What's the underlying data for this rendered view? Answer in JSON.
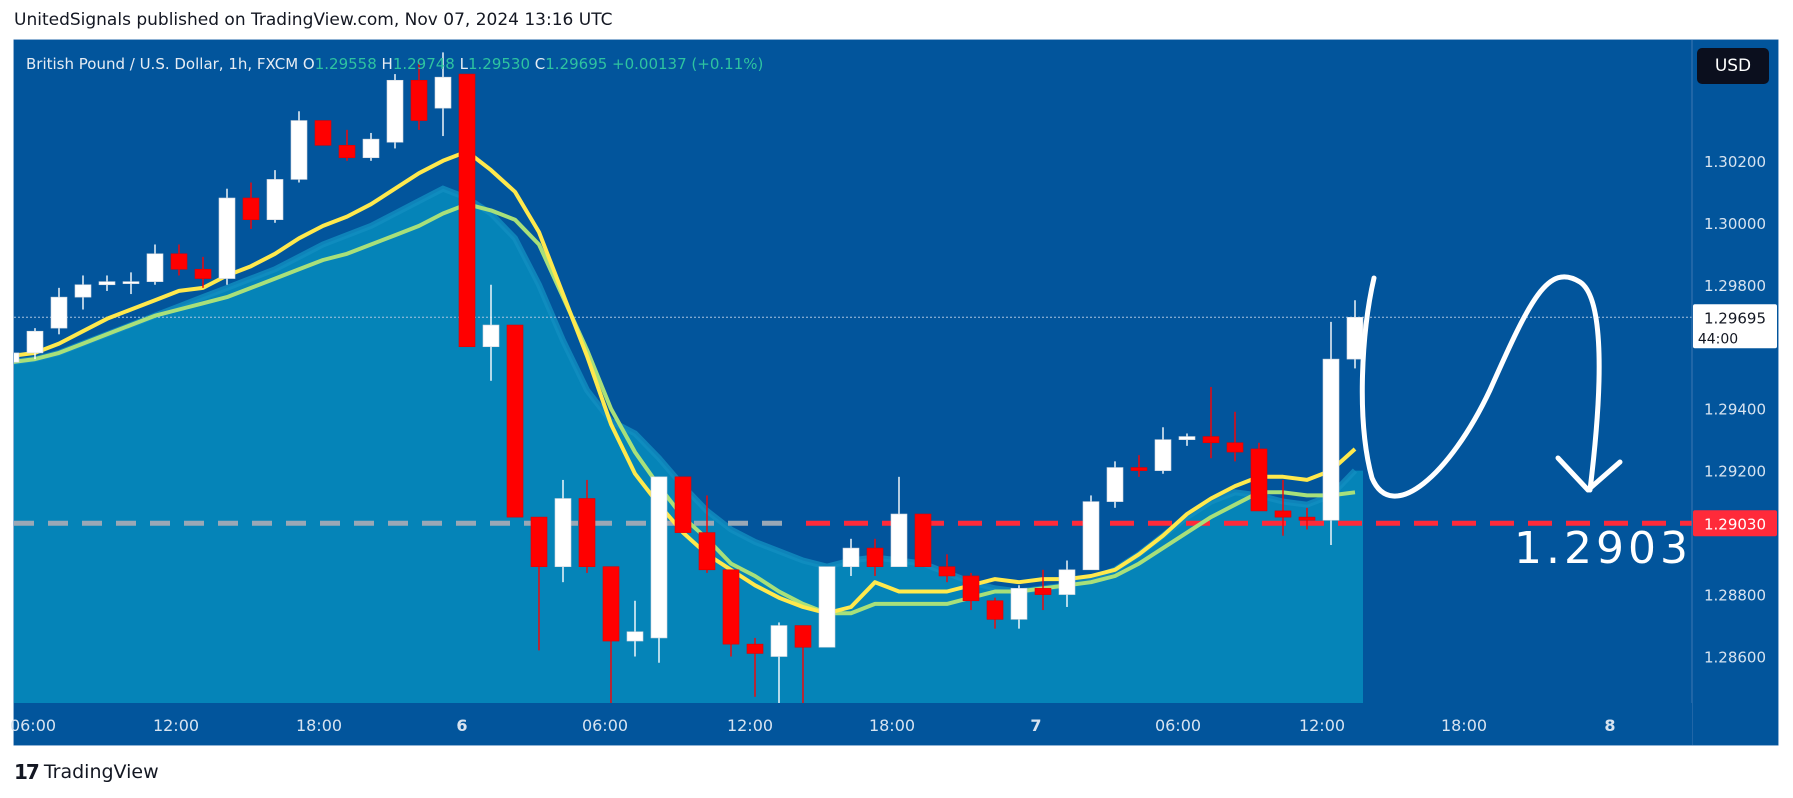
{
  "header": {
    "published": "UnitedSignals published on TradingView.com, Nov 07, 2024 13:16 UTC"
  },
  "footer": {
    "brand": "TradingView",
    "logo_text": "17"
  },
  "currency_button": "USD",
  "colors": {
    "background": "#02559c",
    "area": "#0584b8",
    "area_edge": "#128fc0",
    "up_candle": "#ffffff",
    "down_candle": "#ff0000",
    "fast_ma": "#ffe94d",
    "slow_ma": "#a8e07a",
    "level_line": "#ff2a3a",
    "level_line_left": "#9aa8b6"
  },
  "chart_data": {
    "type": "candlestick",
    "legend": {
      "symbol": "British Pound / U.S. Dollar, 1h, FXCM",
      "open_label": "O",
      "open": "1.29558",
      "high_label": "H",
      "high": "1.29748",
      "low_label": "L",
      "low": "1.29530",
      "close_label": "C",
      "close": "1.29695",
      "change": "+0.00137 (+0.11%)"
    },
    "ylim": [
      1.2845,
      1.3059
    ],
    "y_ticks": [
      "1.30200",
      "1.30000",
      "1.29800",
      "1.29400",
      "1.29200",
      "1.28800",
      "1.28600"
    ],
    "x_ticks": [
      "06:00",
      "12:00",
      "18:00",
      "6",
      "06:00",
      "12:00",
      "18:00",
      "7",
      "06:00",
      "12:00",
      "18:00",
      "8"
    ],
    "current_price": {
      "value": 1.29695,
      "label": "1.29695",
      "countdown": "44:00"
    },
    "level": {
      "value": 1.2903,
      "label": "1.29030",
      "annotation": "1.2903"
    },
    "candles": [
      [
        1.2955,
        1.296,
        1.2952,
        1.2958
      ],
      [
        1.2958,
        1.2966,
        1.2956,
        1.2965
      ],
      [
        1.2966,
        1.2979,
        1.2964,
        1.2976
      ],
      [
        1.2976,
        1.2983,
        1.2972,
        1.298
      ],
      [
        1.298,
        1.2983,
        1.2978,
        1.2981
      ],
      [
        1.2981,
        1.2984,
        1.2977,
        1.2981
      ],
      [
        1.2981,
        1.2993,
        1.298,
        1.299
      ],
      [
        1.299,
        1.2993,
        1.2983,
        1.2985
      ],
      [
        1.2985,
        1.2989,
        1.2979,
        1.2982
      ],
      [
        1.2982,
        1.3011,
        1.298,
        1.3008
      ],
      [
        1.3008,
        1.3013,
        1.2998,
        1.3001
      ],
      [
        1.3001,
        1.3017,
        1.3,
        1.3014
      ],
      [
        1.3014,
        1.3036,
        1.3013,
        1.3033
      ],
      [
        1.3033,
        1.3033,
        1.3025,
        1.3025
      ],
      [
        1.3025,
        1.303,
        1.302,
        1.3021
      ],
      [
        1.3021,
        1.3029,
        1.302,
        1.3027
      ],
      [
        1.3026,
        1.3048,
        1.3024,
        1.3046
      ],
      [
        1.3046,
        1.3052,
        1.303,
        1.3033
      ],
      [
        1.3037,
        1.3055,
        1.3028,
        1.3047
      ],
      [
        1.3048,
        1.3048,
        1.296,
        1.296
      ],
      [
        1.296,
        1.298,
        1.2949,
        1.2967
      ],
      [
        1.2967,
        1.2967,
        1.2905,
        1.2905
      ],
      [
        1.2905,
        1.2905,
        1.2862,
        1.2889
      ],
      [
        1.2889,
        1.2917,
        1.2884,
        1.2911
      ],
      [
        1.2911,
        1.2917,
        1.2887,
        1.2889
      ],
      [
        1.2889,
        1.2889,
        1.2845,
        1.2865
      ],
      [
        1.2865,
        1.2878,
        1.286,
        1.2868
      ],
      [
        1.2866,
        1.2918,
        1.2858,
        1.2918
      ],
      [
        1.2918,
        1.2918,
        1.29,
        1.29
      ],
      [
        1.29,
        1.2912,
        1.2887,
        1.2888
      ],
      [
        1.2888,
        1.2888,
        1.286,
        1.2864
      ],
      [
        1.2864,
        1.2866,
        1.2847,
        1.2861
      ],
      [
        1.286,
        1.2871,
        1.2843,
        1.287
      ],
      [
        1.287,
        1.287,
        1.2843,
        1.2863
      ],
      [
        1.2863,
        1.2889,
        1.2863,
        1.2889
      ],
      [
        1.2889,
        1.2898,
        1.2886,
        1.2895
      ],
      [
        1.2895,
        1.2898,
        1.2886,
        1.2889
      ],
      [
        1.2889,
        1.2918,
        1.2889,
        1.2906
      ],
      [
        1.2906,
        1.2906,
        1.2889,
        1.2889
      ],
      [
        1.2889,
        1.2893,
        1.2884,
        1.2886
      ],
      [
        1.2886,
        1.2887,
        1.2875,
        1.2878
      ],
      [
        1.2878,
        1.2879,
        1.2869,
        1.2872
      ],
      [
        1.2872,
        1.2883,
        1.2869,
        1.2882
      ],
      [
        1.2882,
        1.2888,
        1.2875,
        1.288
      ],
      [
        1.288,
        1.2891,
        1.2876,
        1.2888
      ],
      [
        1.2888,
        1.2912,
        1.2888,
        1.291
      ],
      [
        1.291,
        1.2923,
        1.2908,
        1.2921
      ],
      [
        1.2921,
        1.2925,
        1.2918,
        1.292
      ],
      [
        1.292,
        1.2934,
        1.2919,
        1.293
      ],
      [
        1.293,
        1.2932,
        1.2928,
        1.2931
      ],
      [
        1.2931,
        1.2947,
        1.2924,
        1.2929
      ],
      [
        1.2929,
        1.2939,
        1.2923,
        1.2926
      ],
      [
        1.2927,
        1.2929,
        1.2907,
        1.2907
      ],
      [
        1.2907,
        1.2917,
        1.2899,
        1.2905
      ],
      [
        1.2905,
        1.2908,
        1.2901,
        1.2904
      ],
      [
        1.2904,
        1.2968,
        1.2896,
        1.2956
      ],
      [
        1.2956,
        1.2975,
        1.2953,
        1.29695
      ]
    ],
    "series": [
      {
        "name": "EMA fast",
        "values": [
          1.2957,
          1.2958,
          1.2961,
          1.2965,
          1.2969,
          1.2972,
          1.2975,
          1.2978,
          1.2979,
          1.2983,
          1.2986,
          1.299,
          1.2995,
          1.2999,
          1.3002,
          1.3006,
          1.3011,
          1.3016,
          1.302,
          1.3023,
          1.3017,
          1.301,
          1.2997,
          1.2977,
          1.2957,
          1.2935,
          1.2919,
          1.2909,
          1.29,
          1.2893,
          1.2888,
          1.2883,
          1.2879,
          1.2876,
          1.2874,
          1.2876,
          1.2884,
          1.2881,
          1.2881,
          1.2881,
          1.2883,
          1.2885,
          1.2884,
          1.2885,
          1.2885,
          1.2886,
          1.2888,
          1.2893,
          1.2899,
          1.2906,
          1.2911,
          1.2915,
          1.2918,
          1.2918,
          1.2917,
          1.292,
          1.2927
        ]
      },
      {
        "name": "EMA slow",
        "values": [
          1.2955,
          1.2956,
          1.2958,
          1.2961,
          1.2964,
          1.2967,
          1.297,
          1.2972,
          1.2974,
          1.2976,
          1.2979,
          1.2982,
          1.2985,
          1.2988,
          1.299,
          1.2993,
          1.2996,
          1.2999,
          1.3003,
          1.3006,
          1.3004,
          1.3001,
          1.2993,
          1.2976,
          1.2959,
          1.294,
          1.2926,
          1.2915,
          1.2905,
          1.2898,
          1.289,
          1.2886,
          1.2881,
          1.2877,
          1.2874,
          1.2874,
          1.2877,
          1.2877,
          1.2877,
          1.2877,
          1.2879,
          1.2881,
          1.2881,
          1.2882,
          1.2883,
          1.2884,
          1.2886,
          1.289,
          1.2895,
          1.29,
          1.2905,
          1.2909,
          1.2913,
          1.2913,
          1.2912,
          1.2912,
          1.2913
        ]
      },
      {
        "name": "Area top",
        "values": [
          1.2955,
          1.2956,
          1.2958,
          1.2961,
          1.2964,
          1.2967,
          1.297,
          1.2973,
          1.2976,
          1.2979,
          1.2982,
          1.2985,
          1.2989,
          1.2993,
          1.2996,
          1.2999,
          1.3003,
          1.3007,
          1.3011,
          1.3008,
          1.3003,
          1.2995,
          1.298,
          1.2962,
          1.2946,
          1.2936,
          1.2932,
          1.2924,
          1.2915,
          1.2907,
          1.2901,
          1.2897,
          1.2894,
          1.2891,
          1.2889,
          1.2891,
          1.2892,
          1.2891,
          1.289,
          1.2887,
          1.2884,
          1.2882,
          1.2881,
          1.2882,
          1.2883,
          1.2885,
          1.2888,
          1.2893,
          1.2899,
          1.2905,
          1.291,
          1.2913,
          1.2912,
          1.291,
          1.2909,
          1.2912,
          1.292
        ]
      }
    ]
  }
}
